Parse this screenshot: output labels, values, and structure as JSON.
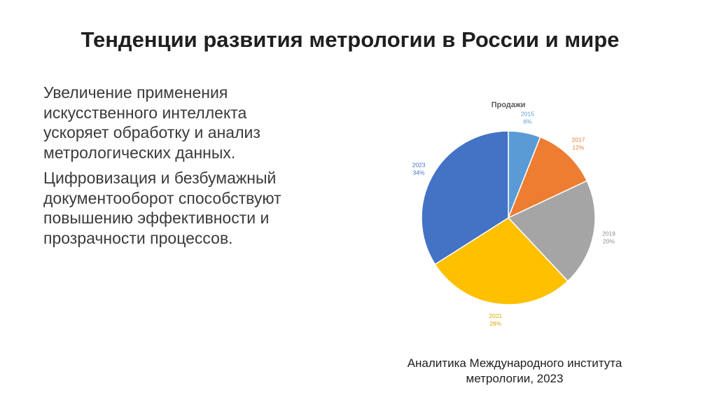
{
  "slide": {
    "title": "Тенденции развития метрологии в России и мире",
    "paragraphs": [
      "Увеличение применения искусственного интеллекта ускоряет обработку и анализ метрологических данных.",
      "Цифровизация и безбумажный документооборот способствуют повышению эффективности и прозрачности процессов."
    ],
    "caption": "Аналитика Международного института метрологии, 2023"
  },
  "chart_data": {
    "type": "pie",
    "title": "Продажи",
    "categories": [
      "2015",
      "2017",
      "2019",
      "2021",
      "2023"
    ],
    "values": [
      6,
      12,
      20,
      28,
      34
    ],
    "value_labels": [
      "6%",
      "12%",
      "20%",
      "28%",
      "34%"
    ],
    "colors": [
      "#5b9bd5",
      "#ed7d31",
      "#a5a5a5",
      "#ffc000",
      "#4472c4"
    ],
    "label_colors": [
      "#5b9bd5",
      "#ed7d31",
      "#8c8c8c",
      "#e0a800",
      "#4472c4"
    ],
    "legend": "none"
  }
}
